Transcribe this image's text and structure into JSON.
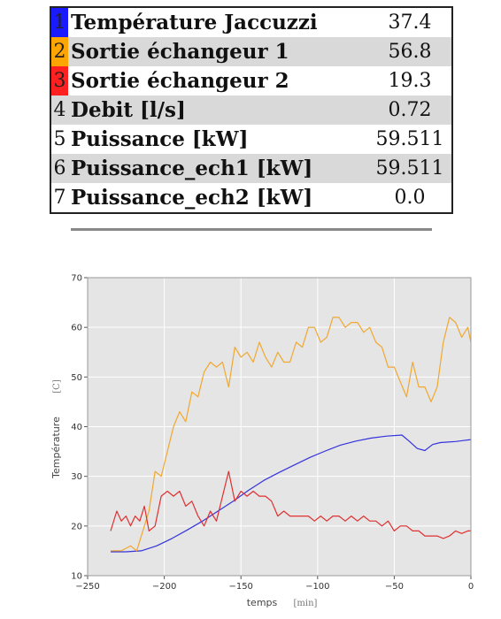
{
  "table": {
    "rows": [
      {
        "num": "1",
        "label": "Température Jaccuzzi",
        "value": "37.4",
        "color": "#1a1aff"
      },
      {
        "num": "2",
        "label": "Sortie échangeur 1",
        "value": "56.8",
        "color": "#ffa500"
      },
      {
        "num": "3",
        "label": "Sortie échangeur 2",
        "value": "19.3",
        "color": "#ff2020"
      },
      {
        "num": "4",
        "label": "Debit [l/s]",
        "value": "0.72",
        "color": ""
      },
      {
        "num": "5",
        "label": "Puissance [kW]",
        "value": "59.511",
        "color": ""
      },
      {
        "num": "6",
        "label": "Puissance_ech1 [kW]",
        "value": "59.511",
        "color": ""
      },
      {
        "num": "7",
        "label": "Puissance_ech2 [kW]",
        "value": "0.0",
        "color": ""
      }
    ]
  },
  "chart_data": {
    "type": "line",
    "xlabel": "temps",
    "xunit": "[min]",
    "ylabel": "Température",
    "yunit": "[C]",
    "xlim": [
      -250,
      0
    ],
    "ylim": [
      10,
      70
    ],
    "xticks": [
      "−250",
      "−200",
      "−150",
      "−100",
      "−50",
      "0"
    ],
    "xtick_values": [
      -250,
      -200,
      -150,
      -100,
      -50,
      0
    ],
    "yticks": [
      "10",
      "20",
      "30",
      "40",
      "50",
      "60",
      "70"
    ],
    "ytick_values": [
      10,
      20,
      30,
      40,
      50,
      60,
      70
    ],
    "grid": true,
    "series": [
      {
        "color": "#3333dd",
        "x": [
          -235,
          -225,
          -215,
          -205,
          -195,
          -185,
          -175,
          -165,
          -155,
          -145,
          -135,
          -125,
          -115,
          -105,
          -95,
          -85,
          -75,
          -65,
          -55,
          -45,
          -40,
          -35,
          -30,
          -25,
          -20,
          -15,
          -10,
          -5,
          0
        ],
        "y": [
          14.8,
          14.8,
          15.0,
          16.0,
          17.5,
          19.2,
          21.0,
          23.0,
          25.0,
          27.2,
          29.2,
          30.8,
          32.3,
          33.8,
          35.1,
          36.3,
          37.1,
          37.7,
          38.1,
          38.3,
          37.0,
          35.6,
          35.2,
          36.4,
          36.8,
          36.9,
          37.0,
          37.2,
          37.4
        ]
      },
      {
        "color": "#f0a830",
        "x": [
          -235,
          -228,
          -222,
          -218,
          -214,
          -210,
          -206,
          -202,
          -198,
          -194,
          -190,
          -186,
          -182,
          -178,
          -174,
          -170,
          -166,
          -162,
          -158,
          -154,
          -150,
          -146,
          -142,
          -138,
          -134,
          -130,
          -126,
          -122,
          -118,
          -114,
          -110,
          -106,
          -102,
          -98,
          -94,
          -90,
          -86,
          -82,
          -78,
          -74,
          -70,
          -66,
          -62,
          -58,
          -54,
          -50,
          -46,
          -42,
          -38,
          -34,
          -30,
          -26,
          -22,
          -18,
          -14,
          -10,
          -6,
          -2,
          0
        ],
        "y": [
          15,
          15,
          16,
          15,
          19,
          23,
          31,
          30,
          35,
          40,
          43,
          41,
          47,
          46,
          51,
          53,
          52,
          53,
          48,
          56,
          54,
          55,
          53,
          57,
          54,
          52,
          55,
          53,
          53,
          57,
          56,
          60,
          60,
          57,
          58,
          62,
          62,
          60,
          61,
          61,
          59,
          60,
          57,
          56,
          52,
          52,
          49,
          46,
          53,
          48,
          48,
          45,
          48,
          57,
          62,
          61,
          58,
          60,
          57
        ]
      },
      {
        "color": "#e03030",
        "x": [
          -235,
          -231,
          -228,
          -225,
          -222,
          -219,
          -216,
          -213,
          -210,
          -206,
          -202,
          -198,
          -194,
          -190,
          -186,
          -182,
          -178,
          -174,
          -170,
          -166,
          -162,
          -158,
          -154,
          -150,
          -146,
          -142,
          -138,
          -134,
          -130,
          -126,
          -122,
          -118,
          -114,
          -110,
          -106,
          -102,
          -98,
          -94,
          -90,
          -86,
          -82,
          -78,
          -74,
          -70,
          -66,
          -62,
          -58,
          -54,
          -50,
          -46,
          -42,
          -38,
          -34,
          -30,
          -26,
          -22,
          -18,
          -14,
          -10,
          -6,
          -2,
          0
        ],
        "y": [
          19,
          23,
          21,
          22,
          20,
          22,
          21,
          24,
          19,
          20,
          26,
          27,
          26,
          27,
          24,
          25,
          22,
          20,
          23,
          21,
          26,
          31,
          25,
          27,
          26,
          27,
          26,
          26,
          25,
          22,
          23,
          22,
          22,
          22,
          22,
          21,
          22,
          21,
          22,
          22,
          21,
          22,
          21,
          22,
          21,
          21,
          20,
          21,
          19,
          20,
          20,
          19,
          19,
          18,
          18,
          18,
          17.5,
          18,
          19,
          18.5,
          19,
          19
        ]
      }
    ]
  }
}
